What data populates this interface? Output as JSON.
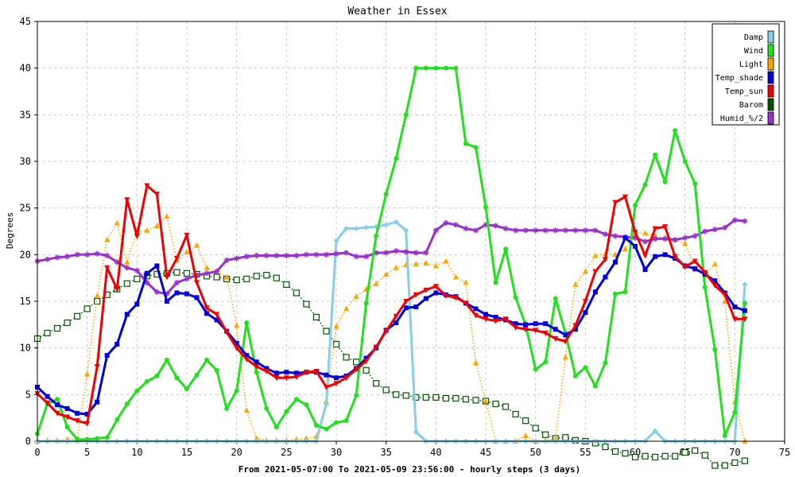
{
  "colors": {
    "background": "#ffffff",
    "frame": "#000000",
    "grid": "#c8c8c8",
    "legend_bg": "#ffffff"
  },
  "chart_data": {
    "type": "line",
    "title": "Weather in Essex",
    "xlabel": "From 2021-05-07:00 To 2021-05-09 23:56:00 - hourly steps (3 days)",
    "ylabel": "Degrees",
    "xlim": [
      0,
      75
    ],
    "ylim": [
      0,
      45
    ],
    "x_ticks": [
      0,
      5,
      10,
      15,
      20,
      25,
      30,
      35,
      40,
      45,
      50,
      55,
      60,
      65,
      70,
      75
    ],
    "y_ticks": [
      0,
      5,
      10,
      15,
      20,
      25,
      30,
      35,
      40,
      45
    ],
    "grid": true,
    "legend_position": "top-right",
    "x": [
      0,
      1,
      2,
      3,
      4,
      5,
      6,
      7,
      8,
      9,
      10,
      11,
      12,
      13,
      14,
      15,
      16,
      17,
      18,
      19,
      20,
      21,
      22,
      23,
      24,
      25,
      26,
      27,
      28,
      29,
      30,
      31,
      32,
      33,
      34,
      35,
      36,
      37,
      38,
      39,
      40,
      41,
      42,
      43,
      44,
      45,
      46,
      47,
      48,
      49,
      50,
      51,
      52,
      53,
      54,
      55,
      56,
      57,
      58,
      59,
      60,
      61,
      62,
      63,
      64,
      65,
      66,
      67,
      68,
      69,
      70,
      71
    ],
    "series": [
      {
        "name": "Damp",
        "color": "#87ceeb",
        "style": "solid",
        "marker": "diamond",
        "values": [
          0,
          0,
          0,
          0,
          0,
          0,
          0,
          0,
          0,
          0,
          0,
          0,
          0,
          0,
          0,
          0,
          0,
          0,
          0,
          0,
          0,
          0,
          0,
          0,
          0,
          0,
          0,
          0,
          0,
          4.0,
          21.5,
          22.8,
          22.8,
          22.9,
          23.0,
          23.2,
          23.5,
          22.6,
          1.0,
          0,
          0,
          0,
          0,
          0,
          0,
          0,
          0,
          0,
          0,
          0,
          0,
          0,
          0,
          0,
          0,
          0,
          0,
          0,
          0,
          0,
          0,
          0,
          1.1,
          0,
          0,
          0,
          0,
          0,
          0,
          0,
          0,
          16.8
        ]
      },
      {
        "name": "Wind",
        "color": "#22e01e",
        "style": "solid",
        "marker": "circle",
        "values": [
          0.8,
          4.0,
          4.5,
          1.5,
          0.2,
          0.2,
          0.3,
          0.4,
          2.3,
          4.0,
          5.4,
          6.4,
          7.0,
          8.7,
          6.8,
          5.6,
          7.1,
          8.7,
          7.6,
          3.5,
          5.4,
          12.7,
          7.4,
          3.5,
          1.5,
          3.2,
          4.5,
          3.9,
          1.7,
          1.3,
          2.0,
          2.2,
          4.9,
          14.8,
          22.0,
          26.5,
          30.3,
          35.0,
          40.0,
          40.0,
          40.0,
          40.0,
          40.0,
          31.9,
          31.5,
          25.1,
          17.0,
          20.6,
          15.4,
          12.5,
          7.7,
          8.5,
          15.3,
          11.6,
          7.0,
          7.9,
          5.9,
          8.4,
          15.8,
          16.0,
          25.3,
          27.5,
          30.7,
          27.8,
          33.3,
          30.0,
          27.6,
          16.5,
          9.8,
          0.6,
          3.1,
          14.8
        ]
      },
      {
        "name": "Light",
        "color": "#ffa500",
        "style": "dotted",
        "marker": "triangle-up",
        "values": [
          0,
          0.1,
          0.1,
          0.2,
          0.3,
          7.2,
          15.6,
          21.6,
          23.4,
          19.2,
          22.5,
          22.6,
          23.1,
          24.1,
          19.4,
          20.3,
          21.0,
          18.6,
          18.2,
          17.6,
          12.4,
          3.3,
          0.3,
          0.1,
          0.1,
          0.1,
          0.2,
          0.3,
          0.5,
          4.3,
          12.3,
          14.2,
          15.5,
          16.3,
          16.9,
          17.9,
          18.6,
          18.9,
          19.0,
          19.1,
          18.8,
          19.3,
          17.6,
          17.0,
          8.4,
          4.3,
          0,
          0,
          0,
          0.6,
          0,
          0.1,
          0.3,
          9.0,
          16.8,
          18.2,
          19.9,
          20.1,
          20.0,
          20.6,
          22.3,
          22.3,
          22.0,
          21.8,
          21.6,
          21.2,
          18.4,
          17.8,
          19.0,
          15.0,
          4.2,
          0
        ]
      },
      {
        "name": "Temp_shade",
        "color": "#0000dd",
        "style": "solid",
        "marker": "square",
        "values": [
          5.8,
          4.8,
          3.9,
          3.5,
          3.0,
          2.9,
          4.2,
          9.2,
          10.4,
          13.6,
          14.7,
          18.0,
          18.8,
          15.0,
          15.9,
          15.8,
          15.4,
          13.7,
          13.0,
          11.8,
          10.5,
          9.2,
          8.5,
          7.8,
          7.3,
          7.4,
          7.3,
          7.4,
          7.4,
          7.1,
          6.8,
          7.0,
          7.8,
          8.9,
          10.0,
          11.9,
          12.7,
          14.3,
          14.4,
          15.3,
          15.9,
          15.7,
          15.5,
          14.8,
          14.2,
          13.6,
          13.3,
          13.0,
          12.6,
          12.5,
          12.6,
          12.6,
          12.0,
          11.4,
          12.0,
          13.8,
          16.0,
          17.6,
          19.2,
          21.8,
          20.9,
          18.4,
          19.8,
          20.0,
          19.6,
          18.8,
          18.5,
          17.9,
          17.2,
          15.9,
          14.4,
          14.0
        ]
      },
      {
        "name": "Temp_sun",
        "color": "#ee0000",
        "style": "solid",
        "marker": "triangle-down",
        "values": [
          5.1,
          4.1,
          3.0,
          2.6,
          2.2,
          1.9,
          8.0,
          18.6,
          16.3,
          25.9,
          22.0,
          27.4,
          26.5,
          17.6,
          19.6,
          22.1,
          17.0,
          14.3,
          13.6,
          11.7,
          10.0,
          8.8,
          8.0,
          7.5,
          6.8,
          6.8,
          6.9,
          7.4,
          7.5,
          5.8,
          6.2,
          6.8,
          7.7,
          8.6,
          10.1,
          11.8,
          13.4,
          15.0,
          15.7,
          16.2,
          16.6,
          15.6,
          15.4,
          14.8,
          13.5,
          13.1,
          12.9,
          13.1,
          12.2,
          12.0,
          11.9,
          11.6,
          11.0,
          10.7,
          12.4,
          15.0,
          18.2,
          19.5,
          25.6,
          26.2,
          22.4,
          19.9,
          22.8,
          23.0,
          19.8,
          18.7,
          19.3,
          18.1,
          16.7,
          15.7,
          13.1,
          13.1
        ]
      },
      {
        "name": "Barom",
        "color": "#005500",
        "style": "dotted",
        "marker": "open-square",
        "values": [
          11.0,
          11.6,
          12.1,
          12.7,
          13.4,
          14.2,
          15.0,
          15.7,
          16.3,
          16.9,
          17.4,
          17.7,
          17.9,
          18.0,
          18.1,
          18.0,
          17.9,
          17.7,
          17.6,
          17.4,
          17.3,
          17.4,
          17.7,
          17.8,
          17.5,
          16.8,
          15.9,
          14.7,
          13.3,
          11.8,
          10.4,
          9.0,
          8.5,
          7.6,
          6.2,
          5.5,
          5.0,
          4.9,
          4.7,
          4.7,
          4.7,
          4.6,
          4.6,
          4.5,
          4.4,
          4.3,
          4.0,
          3.7,
          2.9,
          2.2,
          1.4,
          0.7,
          0.3,
          0.4,
          0.1,
          0,
          -0.2,
          -0.6,
          -1.1,
          -1.3,
          -1.7,
          -1.6,
          -1.7,
          -1.6,
          -1.6,
          -1.2,
          -1.0,
          -1.5,
          -2.6,
          -2.6,
          -2.3,
          -2.1
        ]
      },
      {
        "name": "Humid_%/2",
        "color": "#9932cc",
        "style": "solid",
        "marker": "star",
        "values": [
          19.3,
          19.5,
          19.7,
          19.8,
          20.0,
          20.0,
          20.1,
          19.9,
          19.2,
          18.6,
          18.3,
          17.0,
          16.0,
          15.8,
          17.0,
          17.4,
          17.8,
          18.0,
          18.2,
          19.4,
          19.6,
          19.8,
          19.9,
          19.9,
          19.9,
          19.9,
          19.9,
          20.0,
          20.0,
          20.0,
          20.1,
          20.2,
          19.8,
          19.8,
          20.2,
          20.2,
          20.4,
          20.3,
          20.2,
          20.2,
          22.6,
          23.4,
          23.2,
          22.8,
          22.6,
          23.2,
          23.1,
          22.8,
          22.6,
          22.6,
          22.6,
          22.6,
          22.6,
          22.6,
          22.6,
          22.6,
          22.6,
          22.2,
          22.0,
          21.9,
          21.8,
          21.4,
          21.7,
          21.7,
          21.6,
          21.8,
          22.0,
          22.5,
          22.7,
          22.9,
          23.7,
          23.6
        ]
      }
    ]
  }
}
